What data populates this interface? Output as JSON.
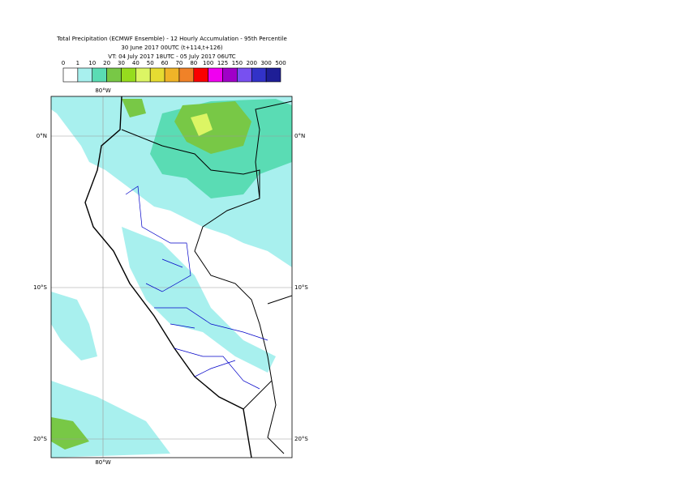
{
  "header": {
    "title": "Total Precipitation (ECMWF Ensemble) - 12 Hourly Accumulation - 95th Percentile",
    "base_time": "30 June 2017 00UTC (t+114,t+126)",
    "valid_time": "VT: 04 July 2017 18UTC - 05 July 2017 06UTC"
  },
  "legend": {
    "labels": [
      "0",
      "1",
      "10",
      "20",
      "30",
      "40",
      "50",
      "60",
      "70",
      "80",
      "100",
      "125",
      "150",
      "200",
      "300",
      "500"
    ],
    "colors": [
      "#ffffff",
      "#a8f0ee",
      "#5adcb4",
      "#78c846",
      "#96dc1e",
      "#dcf564",
      "#e6dc32",
      "#f0b428",
      "#f08228",
      "#fa0000",
      "#f000f0",
      "#a000c8",
      "#7850f0",
      "#3232c8",
      "#1e1e96"
    ]
  },
  "map": {
    "lon_labels": {
      "top": "80°W",
      "bottom": "80°W"
    },
    "lat_labels": [
      "0°N",
      "10°S",
      "20°S"
    ]
  }
}
